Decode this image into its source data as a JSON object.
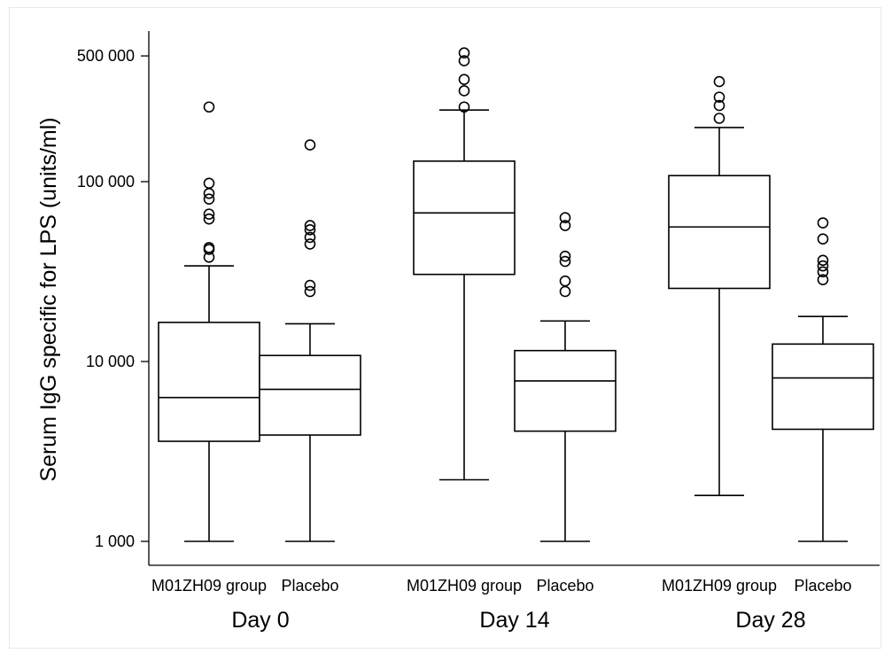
{
  "chart_data": {
    "type": "box",
    "ylabel": "Serum IgG specific for LPS (units/ml)",
    "yscale": "log",
    "ylim": [
      900,
      650000
    ],
    "yticks": [
      {
        "value": 1000,
        "label": "1 000"
      },
      {
        "value": 10000,
        "label": "10 000"
      },
      {
        "value": 100000,
        "label": "100 000"
      },
      {
        "value": 500000,
        "label": "500 000"
      }
    ],
    "groups": [
      {
        "label": "Day 0",
        "boxes": [
          {
            "name": "M01ZH09 group",
            "whisker_low": 1000,
            "q1": 3600,
            "median": 6300,
            "q3": 16500,
            "whisker_high": 34000,
            "outliers": [
              38000,
              42000,
              43000,
              62000,
              66000,
              80000,
              86000,
              98000,
              260000
            ]
          },
          {
            "name": "Placebo",
            "whisker_low": 1000,
            "q1": 3900,
            "median": 7000,
            "q3": 10800,
            "whisker_high": 16200,
            "outliers": [
              24500,
              26500,
              45000,
              49000,
              54000,
              57000,
              160000
            ]
          }
        ]
      },
      {
        "label": "Day 14",
        "boxes": [
          {
            "name": "M01ZH09 group",
            "whisker_low": 2200,
            "q1": 30500,
            "median": 67000,
            "q3": 130000,
            "whisker_high": 250000,
            "outliers": [
              260000,
              320000,
              370000,
              470000,
              520000
            ]
          },
          {
            "name": "Placebo",
            "whisker_low": 1000,
            "q1": 4100,
            "median": 7800,
            "q3": 11500,
            "whisker_high": 16800,
            "outliers": [
              24500,
              28000,
              36000,
              38500,
              57000,
              63000
            ]
          }
        ]
      },
      {
        "label": "Day 28",
        "boxes": [
          {
            "name": "M01ZH09 group",
            "whisker_low": 1800,
            "q1": 25500,
            "median": 56000,
            "q3": 108000,
            "whisker_high": 200000,
            "outliers": [
              225000,
              265000,
              295000,
              360000
            ]
          },
          {
            "name": "Placebo",
            "whisker_low": 1000,
            "q1": 4200,
            "median": 8100,
            "q3": 12500,
            "whisker_high": 17800,
            "outliers": [
              28500,
              31500,
              34000,
              36500,
              48000,
              59000
            ]
          }
        ]
      }
    ]
  }
}
